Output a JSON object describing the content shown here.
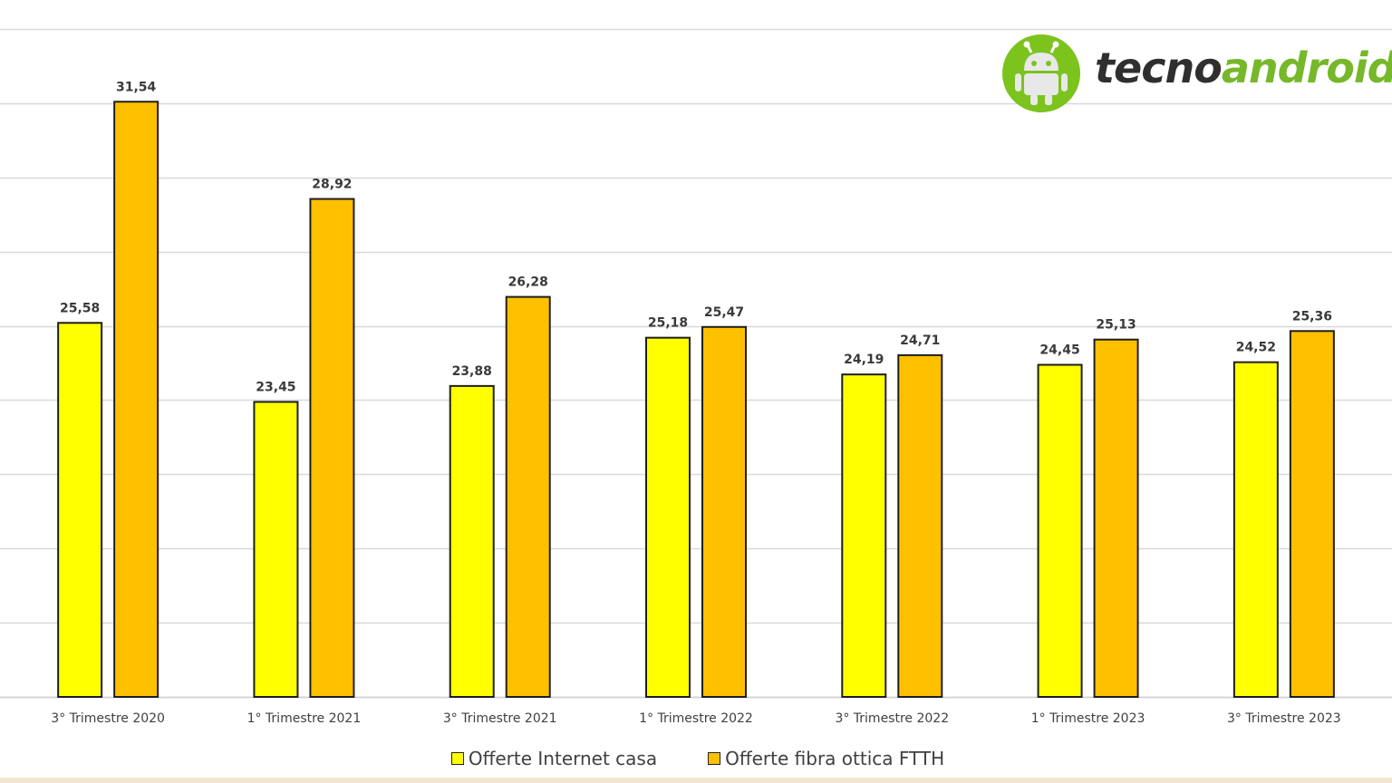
{
  "logo": {
    "text_dark": "tecno",
    "text_green": "android",
    "colors": {
      "circle": "#7cc31e",
      "green_text": "#76b82a",
      "dark_text": "#2f2f2f"
    }
  },
  "chart_data": {
    "type": "bar",
    "categories": [
      "3° Trimestre 2020",
      "1° Trimestre 2021",
      "3° Trimestre 2021",
      "1° Trimestre 2022",
      "3° Trimestre 2022",
      "1° Trimestre 2023",
      "3° Trimestre 2023"
    ],
    "series": [
      {
        "name": "Offerte Internet casa",
        "color": "#ffff00",
        "values": [
          25.58,
          23.45,
          23.88,
          25.18,
          24.19,
          24.45,
          24.52
        ],
        "labels": [
          "25,58",
          "23,45",
          "23,88",
          "25,18",
          "24,19",
          "24,45",
          "24,52"
        ]
      },
      {
        "name": "Offerte fibra ottica FTTH",
        "color": "#ffc000",
        "values": [
          31.54,
          28.92,
          26.28,
          25.47,
          24.71,
          25.13,
          25.36
        ],
        "labels": [
          "31,54",
          "28,92",
          "26,28",
          "25,47",
          "24,71",
          "25,13",
          "25,36"
        ]
      }
    ],
    "title": "",
    "xlabel": "",
    "ylabel": "",
    "ylim": [
      15.5,
      33.5
    ],
    "ytick_step": 2,
    "grid": true,
    "legend_position": "bottom"
  }
}
